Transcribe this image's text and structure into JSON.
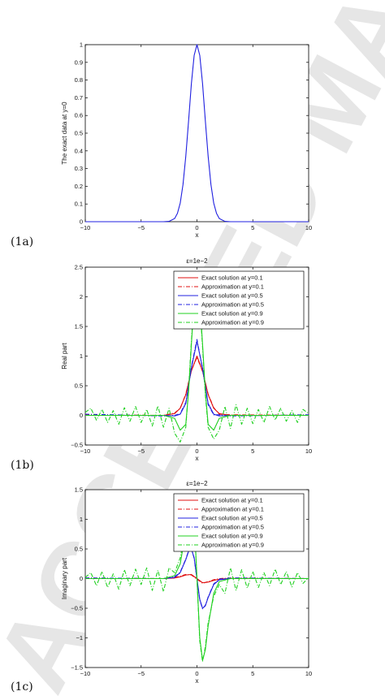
{
  "watermark_text": "ACCEPTED MANUSCRIPT",
  "panels": [
    {
      "tag": "(1a)"
    },
    {
      "tag": "(1b)"
    },
    {
      "tag": "(1c)"
    }
  ],
  "chart_data": [
    {
      "type": "line",
      "title": "",
      "xlabel": "x",
      "ylabel": "The exact data at y=0",
      "xlim": [
        -10,
        10
      ],
      "ylim": [
        0,
        1
      ],
      "xticks": [
        -10,
        -5,
        0,
        5,
        10
      ],
      "xtick_labels": [
        "−10",
        "−5",
        "0",
        "5",
        "10"
      ],
      "yticks": [
        0,
        0.1,
        0.2,
        0.3,
        0.4,
        0.5,
        0.6,
        0.7,
        0.8,
        0.9,
        1
      ],
      "ytick_labels": [
        "0",
        "0.1",
        "0.2",
        "0.3",
        "0.4",
        "0.5",
        "0.6",
        "0.7",
        "0.8",
        "0.9",
        "1"
      ],
      "legend": false,
      "series": [
        {
          "color": "#2020e0",
          "dash": "",
          "x": [
            -10,
            -3,
            -2.5,
            -2,
            -1.75,
            -1.5,
            -1.25,
            -1,
            -0.75,
            -0.5,
            -0.25,
            0,
            0.25,
            0.5,
            0.75,
            1,
            1.25,
            1.5,
            1.75,
            2,
            2.5,
            3,
            10
          ],
          "y": [
            0,
            0,
            0.002,
            0.018,
            0.047,
            0.105,
            0.21,
            0.37,
            0.57,
            0.78,
            0.94,
            1,
            0.94,
            0.78,
            0.57,
            0.37,
            0.21,
            0.105,
            0.047,
            0.018,
            0.002,
            0,
            0
          ]
        }
      ]
    },
    {
      "type": "line",
      "title": "ε=1e−2",
      "xlabel": "x",
      "ylabel": "Real part",
      "xlim": [
        -10,
        10
      ],
      "ylim": [
        -0.5,
        2.5
      ],
      "xticks": [
        -10,
        -5,
        0,
        5,
        10
      ],
      "xtick_labels": [
        "−10",
        "−5",
        "0",
        "5",
        "10"
      ],
      "yticks": [
        -0.5,
        0,
        0.5,
        1,
        1.5,
        2,
        2.5
      ],
      "ytick_labels": [
        "−0.5",
        "0",
        "0.5",
        "1",
        "1.5",
        "2",
        "2.5"
      ],
      "legend": true,
      "legend_position": "top-right",
      "series": [
        {
          "name": "Exact solution at y=0.1",
          "color": "#e01010",
          "dash": "",
          "x": [
            -10,
            -3,
            -2,
            -1.5,
            -1,
            -0.5,
            0,
            0.5,
            1,
            1.5,
            2,
            3,
            10
          ],
          "y": [
            0,
            0,
            0.03,
            0.12,
            0.35,
            0.75,
            1.0,
            0.75,
            0.35,
            0.12,
            0.03,
            0,
            0
          ]
        },
        {
          "name": "Approximation at y=0.1",
          "color": "#e01010",
          "dash": "5,2,1,2",
          "x": [
            -10,
            -3,
            -2,
            -1.5,
            -1,
            -0.5,
            0,
            0.5,
            1,
            1.5,
            2,
            3,
            10
          ],
          "y": [
            0.01,
            0,
            0.04,
            0.12,
            0.36,
            0.76,
            0.98,
            0.74,
            0.36,
            0.13,
            0.02,
            0.01,
            0
          ]
        },
        {
          "name": "Exact solution at y=0.5",
          "color": "#2020e0",
          "dash": "",
          "x": [
            -10,
            -3,
            -2,
            -1.5,
            -1,
            -0.5,
            0,
            0.5,
            1,
            1.5,
            2,
            3,
            10
          ],
          "y": [
            0,
            0,
            -0.01,
            0.02,
            0.2,
            0.8,
            1.25,
            0.8,
            0.2,
            0.02,
            -0.01,
            0,
            0
          ]
        },
        {
          "name": "Approximation at y=0.5",
          "color": "#2020e0",
          "dash": "5,2,1,2",
          "x": [
            -10,
            -3,
            -2,
            -1.5,
            -1,
            -0.5,
            0,
            0.5,
            1,
            1.5,
            2,
            3,
            10
          ],
          "y": [
            0.02,
            -0.01,
            0,
            0.03,
            0.22,
            0.82,
            1.28,
            0.78,
            0.18,
            0.01,
            0.01,
            -0.01,
            0.01
          ]
        },
        {
          "name": "Exact solution at y=0.9",
          "color": "#20d020",
          "dash": "",
          "x": [
            -10,
            -3,
            -2,
            -1.5,
            -1,
            -0.75,
            -0.5,
            -0.25,
            0,
            0.25,
            0.5,
            0.75,
            1,
            1.5,
            2,
            3,
            10
          ],
          "y": [
            0,
            0,
            -0.05,
            -0.25,
            -0.15,
            0.4,
            1.2,
            1.95,
            2.2,
            1.95,
            1.2,
            0.4,
            -0.15,
            -0.25,
            -0.05,
            0,
            0
          ]
        },
        {
          "name": "Approximation at y=0.9",
          "color": "#20d020",
          "dash": "5,2,1,2",
          "x": [
            -10,
            -9.5,
            -9,
            -8.5,
            -8,
            -7.5,
            -7,
            -6.5,
            -6,
            -5.5,
            -5,
            -4.5,
            -4,
            -3.5,
            -3,
            -2.5,
            -2,
            -1.5,
            -1,
            -0.75,
            -0.5,
            -0.25,
            0,
            0.25,
            0.5,
            0.75,
            1,
            1.5,
            2,
            2.5,
            3,
            3.5,
            4,
            4.5,
            5,
            5.5,
            6,
            6.5,
            7,
            7.5,
            8,
            8.5,
            9,
            9.5,
            10
          ],
          "y": [
            0.05,
            0.12,
            -0.08,
            0.1,
            -0.12,
            0.08,
            -0.15,
            0.13,
            -0.1,
            0.15,
            -0.12,
            0.1,
            -0.18,
            0.16,
            -0.2,
            0.12,
            -0.3,
            -0.45,
            -0.2,
            0.45,
            1.25,
            2.0,
            2.25,
            1.9,
            1.15,
            0.35,
            -0.2,
            -0.4,
            -0.25,
            0.15,
            -0.22,
            0.18,
            -0.15,
            0.12,
            -0.14,
            0.1,
            -0.12,
            0.15,
            -0.08,
            0.12,
            -0.1,
            0.08,
            -0.12,
            0.1,
            0.03
          ]
        }
      ]
    },
    {
      "type": "line",
      "title": "ε=1e−2",
      "xlabel": "x",
      "ylabel": "Imaginary part",
      "xlim": [
        -10,
        10
      ],
      "ylim": [
        -1.5,
        1.5
      ],
      "xticks": [
        -10,
        -5,
        0,
        5,
        10
      ],
      "xtick_labels": [
        "−10",
        "−5",
        "0",
        "5",
        "10"
      ],
      "yticks": [
        -1.5,
        -1,
        -0.5,
        0,
        0.5,
        1,
        1.5
      ],
      "ytick_labels": [
        "−1.5",
        "−1",
        "−0.5",
        "0",
        "0.5",
        "1",
        "1.5"
      ],
      "legend": true,
      "legend_position": "top-right",
      "series": [
        {
          "name": "Exact solution at y=0.1",
          "color": "#e01010",
          "dash": "",
          "x": [
            -10,
            -3,
            -2,
            -1.5,
            -1,
            -0.5,
            0,
            0.5,
            1,
            1.5,
            2,
            3,
            10
          ],
          "y": [
            0,
            0,
            0.01,
            0.03,
            0.06,
            0.07,
            0,
            -0.07,
            -0.06,
            -0.03,
            -0.01,
            0,
            0
          ]
        },
        {
          "name": "Approximation at y=0.1",
          "color": "#e01010",
          "dash": "5,2,1,2",
          "x": [
            -10,
            -3,
            -2,
            -1.5,
            -1,
            -0.5,
            0,
            0.5,
            1,
            1.5,
            2,
            3,
            10
          ],
          "y": [
            0.01,
            0,
            0.02,
            0.04,
            0.07,
            0.06,
            -0.01,
            -0.08,
            -0.05,
            -0.02,
            0,
            0.01,
            0
          ]
        },
        {
          "name": "Exact solution at y=0.5",
          "color": "#2020e0",
          "dash": "",
          "x": [
            -10,
            -3,
            -2,
            -1.5,
            -1,
            -0.75,
            -0.5,
            -0.25,
            0,
            0.25,
            0.5,
            0.75,
            1,
            1.5,
            2,
            3,
            10
          ],
          "y": [
            0,
            0,
            0.02,
            0.1,
            0.32,
            0.46,
            0.5,
            0.35,
            0,
            -0.35,
            -0.5,
            -0.46,
            -0.32,
            -0.1,
            -0.02,
            0,
            0
          ]
        },
        {
          "name": "Approximation at y=0.5",
          "color": "#2020e0",
          "dash": "5,2,1,2",
          "x": [
            -10,
            -3,
            -2,
            -1.5,
            -1,
            -0.75,
            -0.5,
            -0.25,
            0,
            0.25,
            0.5,
            0.75,
            1,
            1.5,
            2,
            3,
            10
          ],
          "y": [
            0.01,
            0,
            0.03,
            0.11,
            0.33,
            0.47,
            0.51,
            0.34,
            -0.01,
            -0.36,
            -0.51,
            -0.45,
            -0.31,
            -0.09,
            -0.01,
            0.01,
            0
          ]
        },
        {
          "name": "Exact solution at y=0.9",
          "color": "#20d020",
          "dash": "",
          "x": [
            -10,
            -3,
            -2,
            -1.5,
            -1,
            -0.75,
            -0.5,
            -0.25,
            0,
            0.25,
            0.5,
            0.75,
            1,
            1.5,
            2,
            3,
            10
          ],
          "y": [
            0,
            0,
            0.05,
            0.25,
            0.8,
            1.2,
            1.38,
            1.0,
            0,
            -1.0,
            -1.38,
            -1.2,
            -0.8,
            -0.25,
            -0.05,
            0,
            0
          ]
        },
        {
          "name": "Approximation at y=0.9",
          "color": "#20d020",
          "dash": "5,2,1,2",
          "x": [
            -10,
            -9.5,
            -9,
            -8.5,
            -8,
            -7.5,
            -7,
            -6.5,
            -6,
            -5.5,
            -5,
            -4.5,
            -4,
            -3.5,
            -3,
            -2.5,
            -2,
            -1.5,
            -1,
            -0.75,
            -0.5,
            -0.25,
            0,
            0.25,
            0.5,
            0.75,
            1,
            1.5,
            2,
            2.5,
            3,
            3.5,
            4,
            4.5,
            5,
            5.5,
            6,
            6.5,
            7,
            7.5,
            8,
            8.5,
            9,
            9.5,
            10
          ],
          "y": [
            0.02,
            0.1,
            -0.12,
            0.12,
            -0.15,
            0.08,
            -0.18,
            0.15,
            -0.12,
            0.16,
            -0.1,
            0.18,
            -0.2,
            0.14,
            -0.22,
            0.18,
            0.1,
            0.35,
            0.85,
            1.25,
            1.4,
            1.0,
            0,
            -1.05,
            -1.4,
            -1.15,
            -0.75,
            -0.3,
            -0.1,
            -0.25,
            0.18,
            -0.2,
            0.15,
            -0.16,
            0.12,
            -0.15,
            0.1,
            -0.12,
            0.16,
            -0.1,
            0.12,
            -0.14,
            0.1,
            -0.08,
            0.02
          ]
        }
      ]
    }
  ]
}
